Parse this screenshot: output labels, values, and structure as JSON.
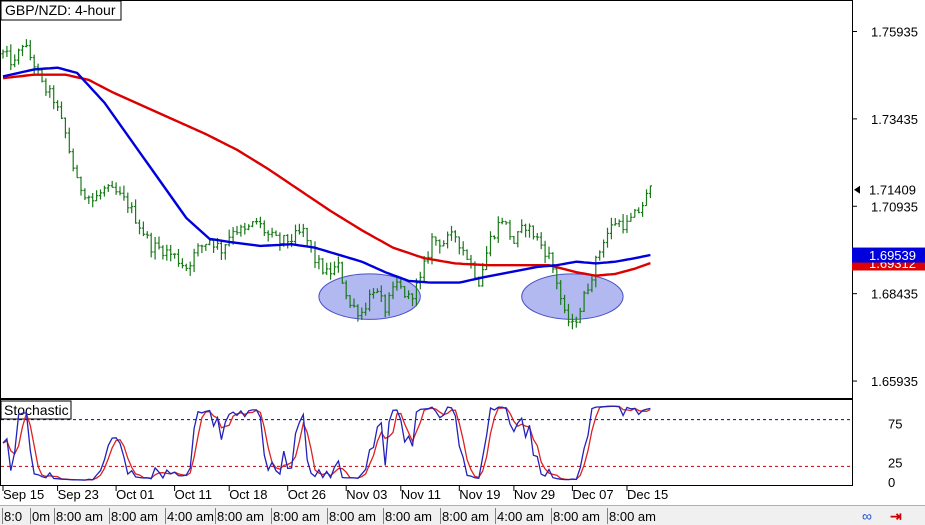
{
  "chart_data": [
    {
      "type": "candlestick",
      "title": "GBP/NZD: 4-hour",
      "y_ticks": [
        "1.75935",
        "1.73435",
        "1.70935",
        "1.68435",
        "1.65935"
      ],
      "ylim": [
        1.6545,
        1.7675
      ],
      "x_ticks": [
        "Sep 15",
        "Sep 23",
        "Oct 01",
        "Oct 11",
        "Oct 18",
        "Oct 26",
        "Nov 03",
        "Nov 11",
        "Nov 19",
        "Nov 29",
        "Dec 07",
        "Dec 15"
      ],
      "current_price": {
        "label": "1.71409",
        "value": 1.71409
      },
      "price_tags": [
        {
          "label": "1.69539",
          "value": 1.69539,
          "color": "#0000dd"
        },
        {
          "label": "1.69312",
          "value": 1.69312,
          "color": "#dd0000"
        }
      ],
      "price_anchors": [
        [
          0,
          1.753
        ],
        [
          3,
          1.75
        ],
        [
          5,
          1.756
        ],
        [
          8,
          1.75
        ],
        [
          10,
          1.744
        ],
        [
          13,
          1.74
        ],
        [
          16,
          1.73
        ],
        [
          19,
          1.716
        ],
        [
          23,
          1.711
        ],
        [
          26,
          1.714
        ],
        [
          29,
          1.713
        ],
        [
          32,
          1.71
        ],
        [
          35,
          1.704
        ],
        [
          38,
          1.698
        ],
        [
          41,
          1.697
        ],
        [
          44,
          1.695
        ],
        [
          47,
          1.692
        ],
        [
          50,
          1.697
        ],
        [
          53,
          1.7
        ],
        [
          56,
          1.697
        ],
        [
          59,
          1.703
        ],
        [
          62,
          1.702
        ],
        [
          65,
          1.705
        ],
        [
          68,
          1.701
        ],
        [
          71,
          1.699
        ],
        [
          74,
          1.7
        ],
        [
          77,
          1.702
        ],
        [
          80,
          1.694
        ],
        [
          83,
          1.69
        ],
        [
          86,
          1.692
        ],
        [
          89,
          1.681
        ],
        [
          92,
          1.679
        ],
        [
          95,
          1.686
        ],
        [
          98,
          1.68
        ],
        [
          101,
          1.687
        ],
        [
          104,
          1.683
        ],
        [
          107,
          1.688
        ],
        [
          110,
          1.7
        ],
        [
          113,
          1.699
        ],
        [
          116,
          1.701
        ],
        [
          119,
          1.695
        ],
        [
          122,
          1.688
        ],
        [
          125,
          1.7
        ],
        [
          128,
          1.706
        ],
        [
          131,
          1.699
        ],
        [
          134,
          1.704
        ],
        [
          137,
          1.7
        ],
        [
          140,
          1.695
        ],
        [
          142,
          1.688
        ],
        [
          144,
          1.678
        ],
        [
          146,
          1.675
        ],
        [
          148,
          1.68
        ],
        [
          151,
          1.69
        ],
        [
          154,
          1.7
        ],
        [
          157,
          1.705
        ],
        [
          160,
          1.704
        ],
        [
          163,
          1.708
        ],
        [
          166,
          1.714
        ]
      ],
      "sma_fast": {
        "color": "#0000dd",
        "points": [
          [
            0,
            1.7465
          ],
          [
            8,
            1.7485
          ],
          [
            14,
            1.749
          ],
          [
            19,
            1.7475
          ],
          [
            26,
            1.739
          ],
          [
            33,
            1.728
          ],
          [
            40,
            1.717
          ],
          [
            47,
            1.706
          ],
          [
            53,
            1.7
          ],
          [
            59,
            1.699
          ],
          [
            66,
            1.698
          ],
          [
            74,
            1.6985
          ],
          [
            80,
            1.6975
          ],
          [
            86,
            1.6955
          ],
          [
            92,
            1.6935
          ],
          [
            98,
            1.6905
          ],
          [
            104,
            1.688
          ],
          [
            110,
            1.6875
          ],
          [
            117,
            1.6875
          ],
          [
            123,
            1.689
          ],
          [
            130,
            1.6905
          ],
          [
            137,
            1.692
          ],
          [
            142,
            1.6925
          ],
          [
            147,
            1.6935
          ],
          [
            152,
            1.693
          ],
          [
            157,
            1.6935
          ],
          [
            162,
            1.6945
          ],
          [
            166,
            1.6954
          ]
        ]
      },
      "sma_slow": {
        "color": "#dd0000",
        "points": [
          [
            0,
            1.746
          ],
          [
            8,
            1.747
          ],
          [
            16,
            1.747
          ],
          [
            22,
            1.7455
          ],
          [
            28,
            1.742
          ],
          [
            36,
            1.738
          ],
          [
            44,
            1.734
          ],
          [
            52,
            1.73
          ],
          [
            60,
            1.7255
          ],
          [
            68,
            1.72
          ],
          [
            76,
            1.714
          ],
          [
            84,
            1.708
          ],
          [
            92,
            1.7025
          ],
          [
            100,
            1.6975
          ],
          [
            108,
            1.6945
          ],
          [
            116,
            1.693
          ],
          [
            124,
            1.6925
          ],
          [
            132,
            1.6925
          ],
          [
            140,
            1.6925
          ],
          [
            147,
            1.6905
          ],
          [
            152,
            1.6895
          ],
          [
            157,
            1.69
          ],
          [
            162,
            1.6915
          ],
          [
            166,
            1.6931
          ]
        ]
      },
      "highlights": [
        {
          "center": [
            94,
            1.6835
          ],
          "rx": [
            13,
            0.0065
          ]
        },
        {
          "center": [
            146,
            1.6835
          ],
          "rx": [
            13,
            0.0065
          ]
        }
      ],
      "stochastic_label": "Stochastic",
      "stochastic_ticks": [
        "75",
        "25",
        "0"
      ],
      "stochastic_ylim": [
        0,
        100
      ],
      "stochastic_levels": [
        {
          "value": 80,
          "color": "#0000cc"
        },
        {
          "value": 20,
          "color": "#cc0000"
        }
      ],
      "stochastic_k_color": "#2222bb",
      "stochastic_d_color": "#dd2222"
    }
  ],
  "status_bar": {
    "cells": [
      "8:0",
      "0m",
      "8:00 am",
      "8:00 am",
      "4:00 am",
      "8:00 am",
      "8:00 am",
      "8:00 am",
      "8:00 am",
      "8:00 am",
      "4:00 am",
      "8:00 am",
      "8:00 am"
    ],
    "link_icon": "link-icon",
    "arrow_icon": "auto-scroll-arrow-icon",
    "link_color": "#1a4fd6",
    "arrow_color": "#cc0000"
  }
}
